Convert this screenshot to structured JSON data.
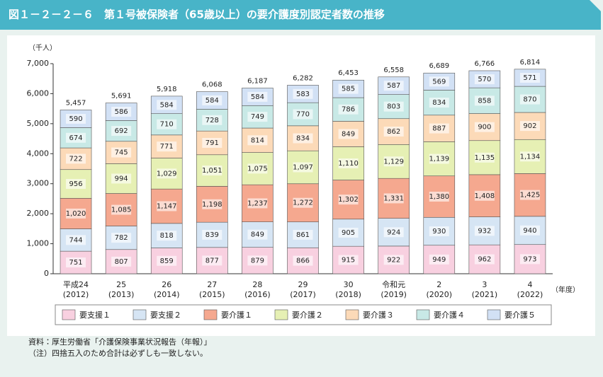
{
  "chart_data": {
    "type": "stacked-bar",
    "title": "図１－２－２－６　第１号被保険者（65歳以上）の要介護度別認定者数の推移",
    "y_unit": "（千人）",
    "x_unit": "（年度）",
    "categories": [
      "平成24",
      "25",
      "26",
      "27",
      "28",
      "29",
      "30",
      "令和元",
      "2",
      "3",
      "4"
    ],
    "category_years": [
      "(2012)",
      "(2013)",
      "(2014)",
      "(2015)",
      "(2016)",
      "(2017)",
      "(2018)",
      "(2019)",
      "(2020)",
      "(2021)",
      "(2022)"
    ],
    "ylim": [
      0,
      7000
    ],
    "yticks": [
      0,
      {
        "value": 1000,
        "label": "1,000"
      },
      {
        "value": 2000,
        "label": "2,000"
      },
      {
        "value": 3000,
        "label": "3,000"
      },
      {
        "value": 4000,
        "label": "4,000"
      },
      {
        "value": 5000,
        "label": "5,000"
      },
      {
        "value": 6000,
        "label": "6,000"
      },
      {
        "value": 7000,
        "label": "7,000"
      }
    ],
    "series": [
      {
        "name": "要支援１",
        "color": "#f8d0e0",
        "values": [
          751,
          807,
          859,
          877,
          879,
          866,
          915,
          922,
          949,
          962,
          973
        ]
      },
      {
        "name": "要支援２",
        "color": "#d6e5f4",
        "values": [
          744,
          782,
          818,
          839,
          849,
          861,
          905,
          924,
          930,
          932,
          940
        ]
      },
      {
        "name": "要介護１",
        "color": "#f5a88f",
        "values": [
          1020,
          1085,
          1147,
          1198,
          1237,
          1272,
          1302,
          1331,
          1380,
          1408,
          1425
        ],
        "value_labels": [
          "1,020",
          "1,085",
          "1,147",
          "1,198",
          "1,237",
          "1,272",
          "1,302",
          "1,331",
          "1,380",
          "1,408",
          "1,425"
        ]
      },
      {
        "name": "要介護２",
        "color": "#e6f0b4",
        "values": [
          956,
          994,
          1029,
          1051,
          1075,
          1097,
          1110,
          1129,
          1139,
          1135,
          1134
        ],
        "value_labels": [
          "956",
          "994",
          "1,029",
          "1,051",
          "1,075",
          "1,097",
          "1,110",
          "1,129",
          "1,139",
          "1,135",
          "1,134"
        ]
      },
      {
        "name": "要介護３",
        "color": "#fcdab8",
        "values": [
          722,
          745,
          771,
          791,
          814,
          834,
          849,
          862,
          887,
          900,
          902
        ]
      },
      {
        "name": "要介護４",
        "color": "#c8e9e6",
        "values": [
          674,
          692,
          710,
          728,
          749,
          770,
          786,
          803,
          834,
          858,
          870
        ]
      },
      {
        "name": "要介護５",
        "color": "#d2e1f5",
        "values": [
          590,
          586,
          584,
          584,
          584,
          583,
          585,
          587,
          569,
          570,
          571
        ]
      }
    ],
    "totals": [
      5457,
      5691,
      5918,
      6068,
      6187,
      6282,
      6453,
      6558,
      6689,
      6766,
      6814
    ],
    "total_labels": [
      "5,457",
      "5,691",
      "5,918",
      "6,068",
      "6,187",
      "6,282",
      "6,453",
      "6,558",
      "6,689",
      "6,766",
      "6,814"
    ],
    "notes": [
      "資料：厚生労働省「介護保険事業状況報告（年報）」",
      "（注）四捨五入のため合計は必ずしも一致しない。"
    ]
  }
}
